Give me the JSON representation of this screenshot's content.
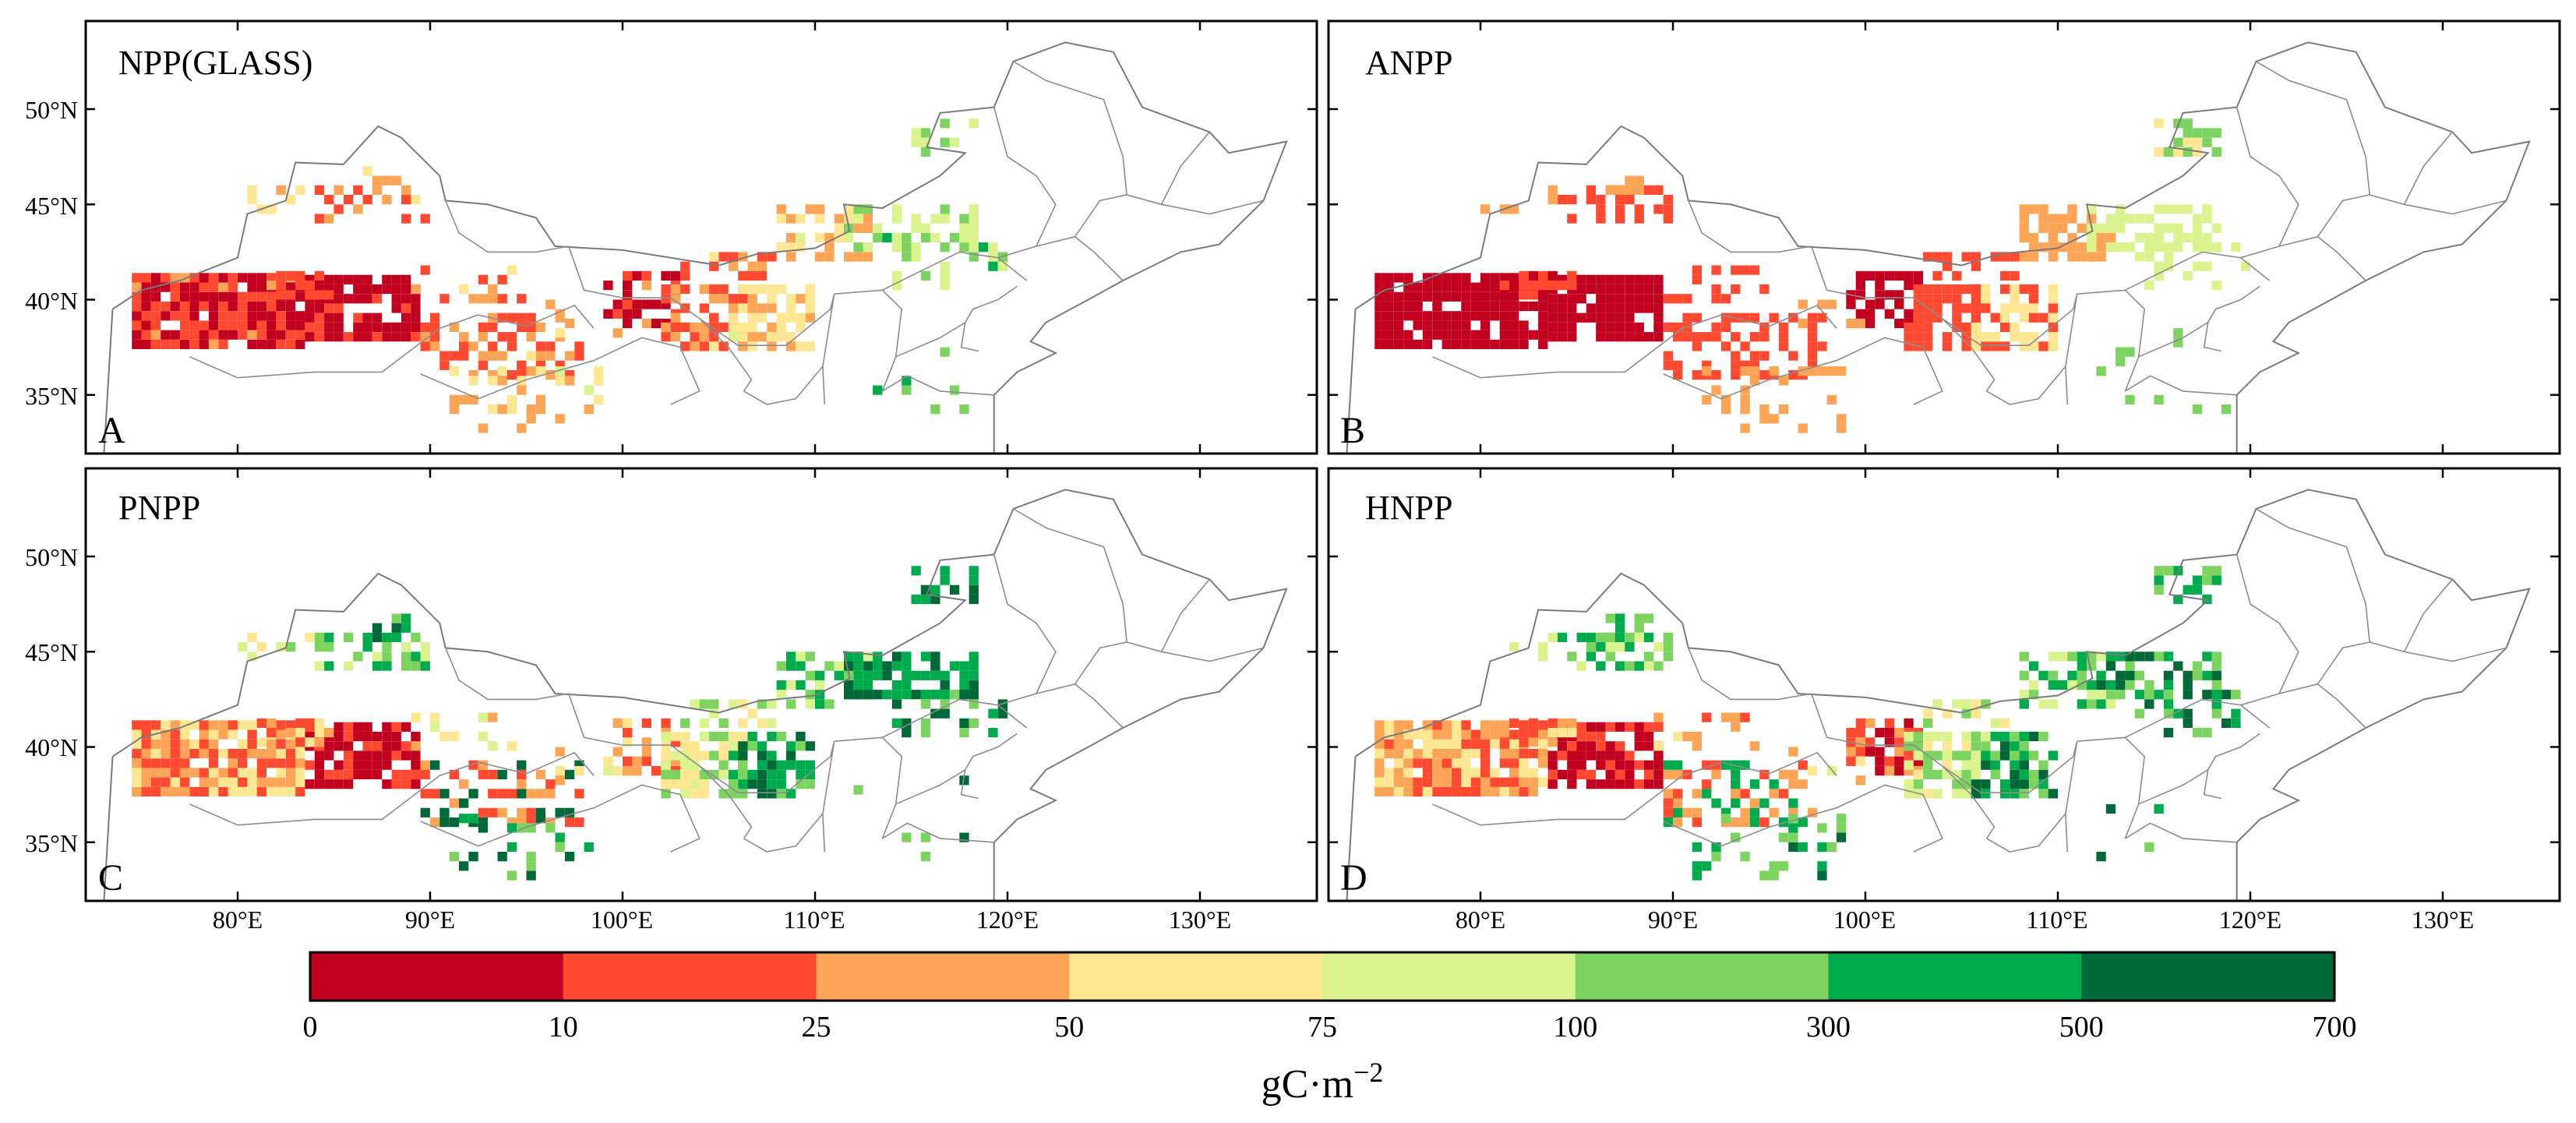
{
  "figure": {
    "panels": [
      {
        "id": "A",
        "title": "NPP(GLASS)",
        "letter": "A"
      },
      {
        "id": "B",
        "title": "ANPP",
        "letter": "B"
      },
      {
        "id": "C",
        "title": "PNPP",
        "letter": "C"
      },
      {
        "id": "D",
        "title": "HNPP",
        "letter": "D"
      }
    ],
    "lat_labels": [
      "50°N",
      "45°N",
      "40°N",
      "35°N"
    ],
    "lon_labels": [
      "80°E",
      "90°E",
      "100°E",
      "110°E",
      "120°E",
      "130°E"
    ],
    "legend": {
      "bins": [
        "0",
        "10",
        "25",
        "50",
        "75",
        "100",
        "300",
        "500",
        "700"
      ],
      "colors": [
        "#c2001f",
        "#ff4a31",
        "#fda456",
        "#ffe693",
        "#daf38e",
        "#7dd35f",
        "#00ab4d",
        "#006937"
      ],
      "unit_base": "gC·m",
      "unit_exp": "−2"
    }
  }
}
